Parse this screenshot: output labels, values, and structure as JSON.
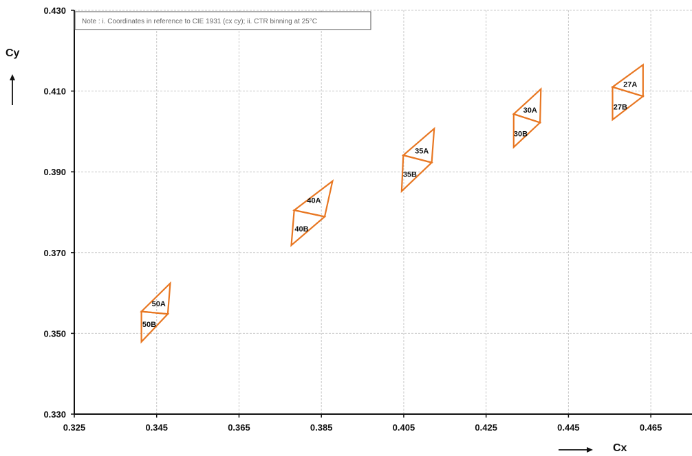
{
  "chart_data": {
    "type": "scatter",
    "note": "Note : i. Coordinates in reference to CIE 1931 (cx cy); ii. CTR binning at 25°C",
    "xlabel": "Cx",
    "ylabel": "Cy",
    "xlim": [
      0.325,
      0.475
    ],
    "ylim": [
      0.33,
      0.43
    ],
    "xticks": [
      "0.325",
      "0.345",
      "0.365",
      "0.385",
      "0.405",
      "0.425",
      "0.445",
      "0.465"
    ],
    "yticks": [
      "0.330",
      "0.350",
      "0.370",
      "0.390",
      "0.410",
      "0.430"
    ],
    "grid": true,
    "series_color": "#E87722",
    "bins": [
      {
        "name": "50A",
        "points": [
          [
            0.3413,
            0.3554
          ],
          [
            0.3483,
            0.3624
          ],
          [
            0.3477,
            0.3548
          ]
        ],
        "label_at": [
          0.3455,
          0.3574
        ]
      },
      {
        "name": "50B",
        "points": [
          [
            0.3413,
            0.3554
          ],
          [
            0.3477,
            0.3548
          ],
          [
            0.3413,
            0.3479
          ]
        ],
        "label_at": [
          0.3432,
          0.3523
        ]
      },
      {
        "name": "40A",
        "points": [
          [
            0.3784,
            0.3805
          ],
          [
            0.3877,
            0.3877
          ],
          [
            0.3858,
            0.3789
          ]
        ],
        "label_at": [
          0.3832,
          0.383
        ]
      },
      {
        "name": "40B",
        "points": [
          [
            0.3784,
            0.3805
          ],
          [
            0.3858,
            0.3789
          ],
          [
            0.3777,
            0.3718
          ]
        ],
        "label_at": [
          0.3802,
          0.3759
        ]
      },
      {
        "name": "35A",
        "points": [
          [
            0.4049,
            0.3941
          ],
          [
            0.4124,
            0.4007
          ],
          [
            0.4118,
            0.3923
          ]
        ],
        "label_at": [
          0.4094,
          0.3952
        ]
      },
      {
        "name": "35B",
        "points": [
          [
            0.4049,
            0.3941
          ],
          [
            0.4118,
            0.3923
          ],
          [
            0.4045,
            0.3852
          ]
        ],
        "label_at": [
          0.4065,
          0.3894
        ]
      },
      {
        "name": "30A",
        "points": [
          [
            0.4317,
            0.4043
          ],
          [
            0.4383,
            0.4105
          ],
          [
            0.4381,
            0.4022
          ]
        ],
        "label_at": [
          0.4357,
          0.4053
        ]
      },
      {
        "name": "30B",
        "points": [
          [
            0.4317,
            0.4043
          ],
          [
            0.4381,
            0.4022
          ],
          [
            0.4317,
            0.3961
          ]
        ],
        "label_at": [
          0.4334,
          0.3995
        ]
      },
      {
        "name": "27A",
        "points": [
          [
            0.4557,
            0.411
          ],
          [
            0.4631,
            0.4165
          ],
          [
            0.4631,
            0.4087
          ]
        ],
        "label_at": [
          0.46,
          0.4117
        ]
      },
      {
        "name": "27B",
        "points": [
          [
            0.4557,
            0.411
          ],
          [
            0.4631,
            0.4087
          ],
          [
            0.4557,
            0.4029
          ]
        ],
        "label_at": [
          0.4576,
          0.4061
        ]
      }
    ]
  }
}
